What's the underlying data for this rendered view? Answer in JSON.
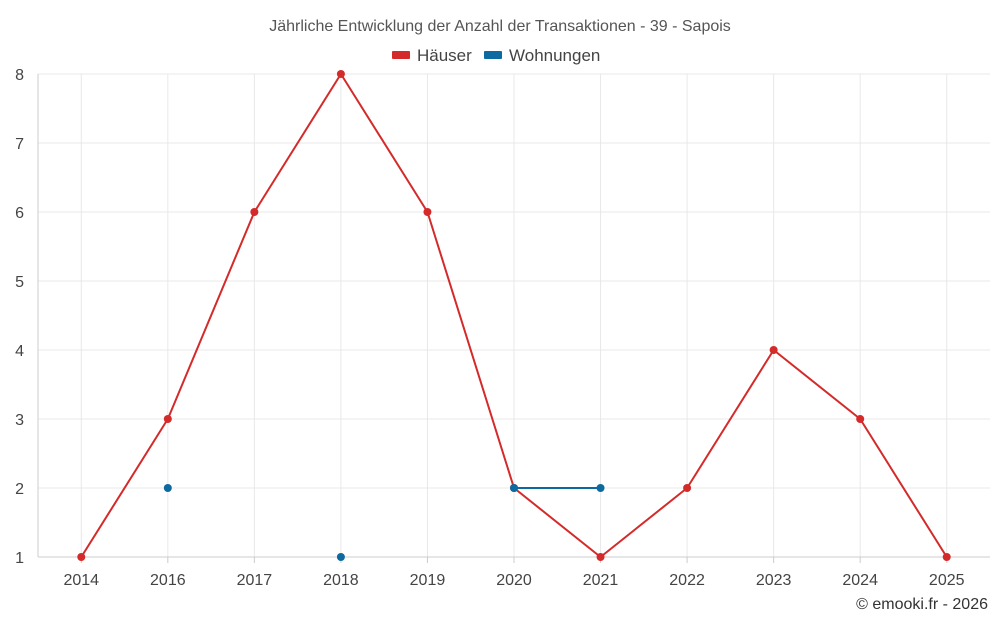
{
  "chart_data": {
    "type": "line",
    "title": "Jährliche Entwicklung der Anzahl der Transaktionen - 39 - Sapois",
    "categories": [
      "2014",
      "2016",
      "2017",
      "2018",
      "2019",
      "2020",
      "2021",
      "2022",
      "2023",
      "2024",
      "2025"
    ],
    "series": [
      {
        "name": "Häuser",
        "color": "#d42a2a",
        "values": [
          1,
          3,
          6,
          8,
          6,
          2,
          1,
          2,
          4,
          3,
          1
        ]
      },
      {
        "name": "Wohnungen",
        "color": "#0d6aa0",
        "values": [
          null,
          2,
          null,
          1,
          null,
          2,
          2,
          null,
          null,
          null,
          null
        ]
      }
    ],
    "yticks": [
      1,
      2,
      3,
      4,
      5,
      6,
      7,
      8
    ],
    "ylim": [
      1,
      8
    ],
    "grid": true,
    "legend_position": "top-center",
    "credit": "© emooki.fr - 2026"
  }
}
